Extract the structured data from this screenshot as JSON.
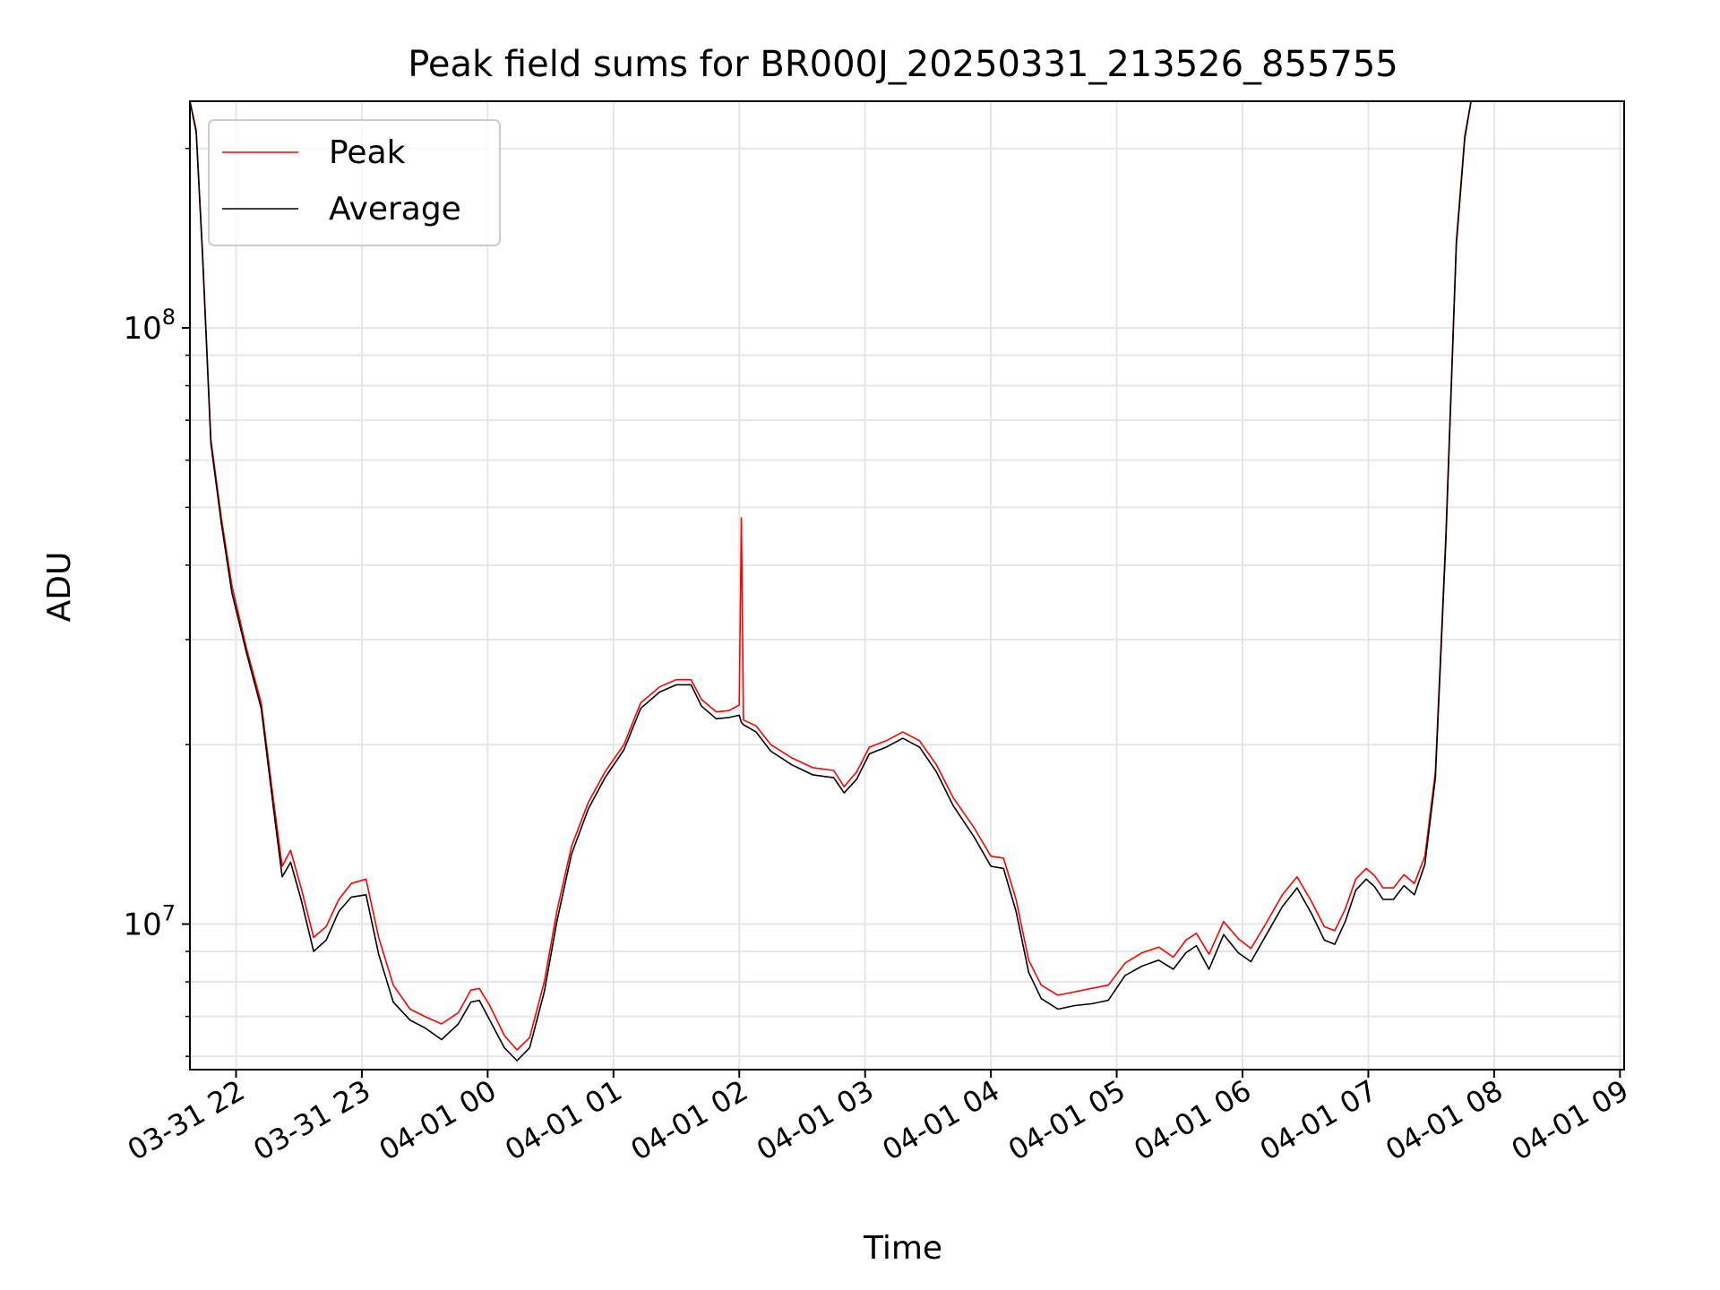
{
  "chart_data": {
    "type": "line",
    "title": "Peak field sums for BR000J_20250331_213526_855755",
    "xlabel": "Time",
    "ylabel": "ADU",
    "yscale": "log",
    "ylim": [
      5700000,
      240000000
    ],
    "xlim": [
      "2025-03-31 21:38",
      "2025-04-01 09:02"
    ],
    "grid": true,
    "legend_position": "upper left",
    "x_ticks": [
      {
        "value": "2025-03-31 22:00",
        "label": "03-31 22"
      },
      {
        "value": "2025-03-31 23:00",
        "label": "03-31 23"
      },
      {
        "value": "2025-04-01 00:00",
        "label": "04-01 00"
      },
      {
        "value": "2025-04-01 01:00",
        "label": "04-01 01"
      },
      {
        "value": "2025-04-01 02:00",
        "label": "04-01 02"
      },
      {
        "value": "2025-04-01 03:00",
        "label": "04-01 03"
      },
      {
        "value": "2025-04-01 04:00",
        "label": "04-01 04"
      },
      {
        "value": "2025-04-01 05:00",
        "label": "04-01 05"
      },
      {
        "value": "2025-04-01 06:00",
        "label": "04-01 06"
      },
      {
        "value": "2025-04-01 07:00",
        "label": "04-01 07"
      },
      {
        "value": "2025-04-01 08:00",
        "label": "04-01 08"
      },
      {
        "value": "2025-04-01 09:00",
        "label": "04-01 09"
      }
    ],
    "y_ticks": [
      {
        "value": 10000000,
        "base": "10",
        "exp": "7"
      },
      {
        "value": 100000000,
        "base": "10",
        "exp": "8"
      }
    ],
    "series": [
      {
        "name": "Peak",
        "color": "#ff0000",
        "points": [
          [
            "2025-03-31 21:38",
            240000000
          ],
          [
            "2025-03-31 21:41",
            215000000
          ],
          [
            "2025-03-31 21:44",
            135000000
          ],
          [
            "2025-03-31 21:48",
            65000000
          ],
          [
            "2025-03-31 21:53",
            48000000
          ],
          [
            "2025-03-31 21:58",
            37000000
          ],
          [
            "2025-03-31 22:05",
            29000000
          ],
          [
            "2025-03-31 22:12",
            23500000
          ],
          [
            "2025-03-31 22:18",
            16000000
          ],
          [
            "2025-03-31 22:22",
            12500000
          ],
          [
            "2025-03-31 22:26",
            13300000
          ],
          [
            "2025-03-31 22:31",
            11500000
          ],
          [
            "2025-03-31 22:37",
            9500000
          ],
          [
            "2025-03-31 22:43",
            9900000
          ],
          [
            "2025-03-31 22:49",
            11000000
          ],
          [
            "2025-03-31 22:55",
            11700000
          ],
          [
            "2025-03-31 23:02",
            11900000
          ],
          [
            "2025-03-31 23:08",
            9500000
          ],
          [
            "2025-03-31 23:15",
            7900000
          ],
          [
            "2025-03-31 23:23",
            7200000
          ],
          [
            "2025-03-31 23:30",
            7000000
          ],
          [
            "2025-03-31 23:38",
            6800000
          ],
          [
            "2025-03-31 23:46",
            7100000
          ],
          [
            "2025-03-31 23:52",
            7750000
          ],
          [
            "2025-03-31 23:56",
            7800000
          ],
          [
            "2025-04-01 00:01",
            7300000
          ],
          [
            "2025-04-01 00:08",
            6500000
          ],
          [
            "2025-04-01 00:14",
            6150000
          ],
          [
            "2025-04-01 00:20",
            6450000
          ],
          [
            "2025-04-01 00:27",
            8000000
          ],
          [
            "2025-04-01 00:33",
            10500000
          ],
          [
            "2025-04-01 00:40",
            13500000
          ],
          [
            "2025-04-01 00:48",
            16000000
          ],
          [
            "2025-04-01 00:56",
            18000000
          ],
          [
            "2025-04-01 01:05",
            20000000
          ],
          [
            "2025-04-01 01:13",
            23500000
          ],
          [
            "2025-04-01 01:22",
            25000000
          ],
          [
            "2025-04-01 01:30",
            25700000
          ],
          [
            "2025-04-01 01:37",
            25700000
          ],
          [
            "2025-04-01 01:42",
            23800000
          ],
          [
            "2025-04-01 01:49",
            22700000
          ],
          [
            "2025-04-01 01:55",
            22800000
          ],
          [
            "2025-04-01 02:00",
            23300000
          ],
          [
            "2025-04-01 02:01",
            48000000
          ],
          [
            "2025-04-01 02:02",
            22000000
          ],
          [
            "2025-04-01 02:08",
            21500000
          ],
          [
            "2025-04-01 02:15",
            20000000
          ],
          [
            "2025-04-01 02:25",
            19000000
          ],
          [
            "2025-04-01 02:35",
            18300000
          ],
          [
            "2025-04-01 02:45",
            18100000
          ],
          [
            "2025-04-01 02:50",
            17000000
          ],
          [
            "2025-04-01 02:56",
            18000000
          ],
          [
            "2025-04-01 03:02",
            19800000
          ],
          [
            "2025-04-01 03:10",
            20300000
          ],
          [
            "2025-04-01 03:18",
            21000000
          ],
          [
            "2025-04-01 03:26",
            20300000
          ],
          [
            "2025-04-01 03:34",
            18500000
          ],
          [
            "2025-04-01 03:42",
            16300000
          ],
          [
            "2025-04-01 03:52",
            14500000
          ],
          [
            "2025-04-01 04:00",
            13000000
          ],
          [
            "2025-04-01 04:06",
            12900000
          ],
          [
            "2025-04-01 04:12",
            11000000
          ],
          [
            "2025-04-01 04:18",
            8700000
          ],
          [
            "2025-04-01 04:24",
            7900000
          ],
          [
            "2025-04-01 04:32",
            7600000
          ],
          [
            "2025-04-01 04:40",
            7700000
          ],
          [
            "2025-04-01 04:48",
            7800000
          ],
          [
            "2025-04-01 04:56",
            7900000
          ],
          [
            "2025-04-01 05:04",
            8600000
          ],
          [
            "2025-04-01 05:12",
            8950000
          ],
          [
            "2025-04-01 05:20",
            9150000
          ],
          [
            "2025-04-01 05:27",
            8800000
          ],
          [
            "2025-04-01 05:33",
            9400000
          ],
          [
            "2025-04-01 05:38",
            9650000
          ],
          [
            "2025-04-01 05:44",
            8900000
          ],
          [
            "2025-04-01 05:51",
            10100000
          ],
          [
            "2025-04-01 05:58",
            9450000
          ],
          [
            "2025-04-01 06:04",
            9100000
          ],
          [
            "2025-04-01 06:11",
            10000000
          ],
          [
            "2025-04-01 06:19",
            11200000
          ],
          [
            "2025-04-01 06:26",
            12000000
          ],
          [
            "2025-04-01 06:33",
            10900000
          ],
          [
            "2025-04-01 06:39",
            9900000
          ],
          [
            "2025-04-01 06:44",
            9750000
          ],
          [
            "2025-04-01 06:49",
            10600000
          ],
          [
            "2025-04-01 06:54",
            11900000
          ],
          [
            "2025-04-01 06:59",
            12400000
          ],
          [
            "2025-04-01 07:03",
            12050000
          ],
          [
            "2025-04-01 07:07",
            11500000
          ],
          [
            "2025-04-01 07:12",
            11500000
          ],
          [
            "2025-04-01 07:17",
            12100000
          ],
          [
            "2025-04-01 07:22",
            11700000
          ],
          [
            "2025-04-01 07:27",
            13000000
          ],
          [
            "2025-04-01 07:32",
            18000000
          ],
          [
            "2025-04-01 07:37",
            45000000
          ],
          [
            "2025-04-01 07:42",
            140000000
          ],
          [
            "2025-04-01 07:46",
            210000000
          ],
          [
            "2025-04-01 07:49",
            240000000
          ]
        ]
      },
      {
        "name": "Average",
        "color": "#000000",
        "points": [
          [
            "2025-03-31 21:38",
            240000000
          ],
          [
            "2025-03-31 21:41",
            213000000
          ],
          [
            "2025-03-31 21:44",
            133000000
          ],
          [
            "2025-03-31 21:48",
            64000000
          ],
          [
            "2025-03-31 21:53",
            47000000
          ],
          [
            "2025-03-31 21:58",
            36000000
          ],
          [
            "2025-03-31 22:05",
            28500000
          ],
          [
            "2025-03-31 22:12",
            23000000
          ],
          [
            "2025-03-31 22:18",
            15500000
          ],
          [
            "2025-03-31 22:22",
            12000000
          ],
          [
            "2025-03-31 22:26",
            12700000
          ],
          [
            "2025-03-31 22:31",
            11000000
          ],
          [
            "2025-03-31 22:37",
            9000000
          ],
          [
            "2025-03-31 22:43",
            9400000
          ],
          [
            "2025-03-31 22:49",
            10500000
          ],
          [
            "2025-03-31 22:55",
            11100000
          ],
          [
            "2025-03-31 23:02",
            11200000
          ],
          [
            "2025-03-31 23:08",
            8900000
          ],
          [
            "2025-03-31 23:15",
            7400000
          ],
          [
            "2025-03-31 23:23",
            6900000
          ],
          [
            "2025-03-31 23:30",
            6700000
          ],
          [
            "2025-03-31 23:38",
            6400000
          ],
          [
            "2025-03-31 23:46",
            6800000
          ],
          [
            "2025-03-31 23:52",
            7400000
          ],
          [
            "2025-03-31 23:56",
            7450000
          ],
          [
            "2025-04-01 00:01",
            6900000
          ],
          [
            "2025-04-01 00:08",
            6200000
          ],
          [
            "2025-04-01 00:14",
            5900000
          ],
          [
            "2025-04-01 00:20",
            6200000
          ],
          [
            "2025-04-01 00:27",
            7700000
          ],
          [
            "2025-04-01 00:33",
            10100000
          ],
          [
            "2025-04-01 00:40",
            13100000
          ],
          [
            "2025-04-01 00:48",
            15600000
          ],
          [
            "2025-04-01 00:56",
            17600000
          ],
          [
            "2025-04-01 01:05",
            19600000
          ],
          [
            "2025-04-01 01:13",
            23000000
          ],
          [
            "2025-04-01 01:22",
            24500000
          ],
          [
            "2025-04-01 01:30",
            25200000
          ],
          [
            "2025-04-01 01:37",
            25200000
          ],
          [
            "2025-04-01 01:42",
            23200000
          ],
          [
            "2025-04-01 01:49",
            22100000
          ],
          [
            "2025-04-01 01:55",
            22200000
          ],
          [
            "2025-04-01 02:00",
            22400000
          ],
          [
            "2025-04-01 02:01",
            21800000
          ],
          [
            "2025-04-01 02:02",
            21600000
          ],
          [
            "2025-04-01 02:08",
            21000000
          ],
          [
            "2025-04-01 02:15",
            19500000
          ],
          [
            "2025-04-01 02:25",
            18500000
          ],
          [
            "2025-04-01 02:35",
            17800000
          ],
          [
            "2025-04-01 02:45",
            17600000
          ],
          [
            "2025-04-01 02:50",
            16600000
          ],
          [
            "2025-04-01 02:56",
            17500000
          ],
          [
            "2025-04-01 03:02",
            19300000
          ],
          [
            "2025-04-01 03:10",
            19800000
          ],
          [
            "2025-04-01 03:18",
            20500000
          ],
          [
            "2025-04-01 03:26",
            19800000
          ],
          [
            "2025-04-01 03:34",
            18000000
          ],
          [
            "2025-04-01 03:42",
            15800000
          ],
          [
            "2025-04-01 03:52",
            14000000
          ],
          [
            "2025-04-01 04:00",
            12500000
          ],
          [
            "2025-04-01 04:06",
            12400000
          ],
          [
            "2025-04-01 04:12",
            10500000
          ],
          [
            "2025-04-01 04:18",
            8300000
          ],
          [
            "2025-04-01 04:24",
            7500000
          ],
          [
            "2025-04-01 04:32",
            7200000
          ],
          [
            "2025-04-01 04:40",
            7300000
          ],
          [
            "2025-04-01 04:48",
            7350000
          ],
          [
            "2025-04-01 04:56",
            7450000
          ],
          [
            "2025-04-01 05:04",
            8200000
          ],
          [
            "2025-04-01 05:12",
            8500000
          ],
          [
            "2025-04-01 05:20",
            8700000
          ],
          [
            "2025-04-01 05:27",
            8400000
          ],
          [
            "2025-04-01 05:33",
            8950000
          ],
          [
            "2025-04-01 05:38",
            9200000
          ],
          [
            "2025-04-01 05:44",
            8400000
          ],
          [
            "2025-04-01 05:51",
            9600000
          ],
          [
            "2025-04-01 05:58",
            8950000
          ],
          [
            "2025-04-01 06:04",
            8650000
          ],
          [
            "2025-04-01 06:11",
            9550000
          ],
          [
            "2025-04-01 06:19",
            10700000
          ],
          [
            "2025-04-01 06:26",
            11500000
          ],
          [
            "2025-04-01 06:33",
            10400000
          ],
          [
            "2025-04-01 06:39",
            9400000
          ],
          [
            "2025-04-01 06:44",
            9250000
          ],
          [
            "2025-04-01 06:49",
            10100000
          ],
          [
            "2025-04-01 06:54",
            11400000
          ],
          [
            "2025-04-01 06:59",
            11900000
          ],
          [
            "2025-04-01 07:03",
            11550000
          ],
          [
            "2025-04-01 07:07",
            11000000
          ],
          [
            "2025-04-01 07:12",
            11000000
          ],
          [
            "2025-04-01 07:17",
            11600000
          ],
          [
            "2025-04-01 07:22",
            11200000
          ],
          [
            "2025-04-01 07:27",
            12600000
          ],
          [
            "2025-04-01 07:32",
            17600000
          ],
          [
            "2025-04-01 07:37",
            44000000
          ],
          [
            "2025-04-01 07:42",
            138000000
          ],
          [
            "2025-04-01 07:46",
            208000000
          ],
          [
            "2025-04-01 07:49",
            240000000
          ]
        ]
      }
    ],
    "colors": {
      "grid": "#e6e6e6",
      "axes": "#000000",
      "legend_border": "#cccccc"
    }
  }
}
